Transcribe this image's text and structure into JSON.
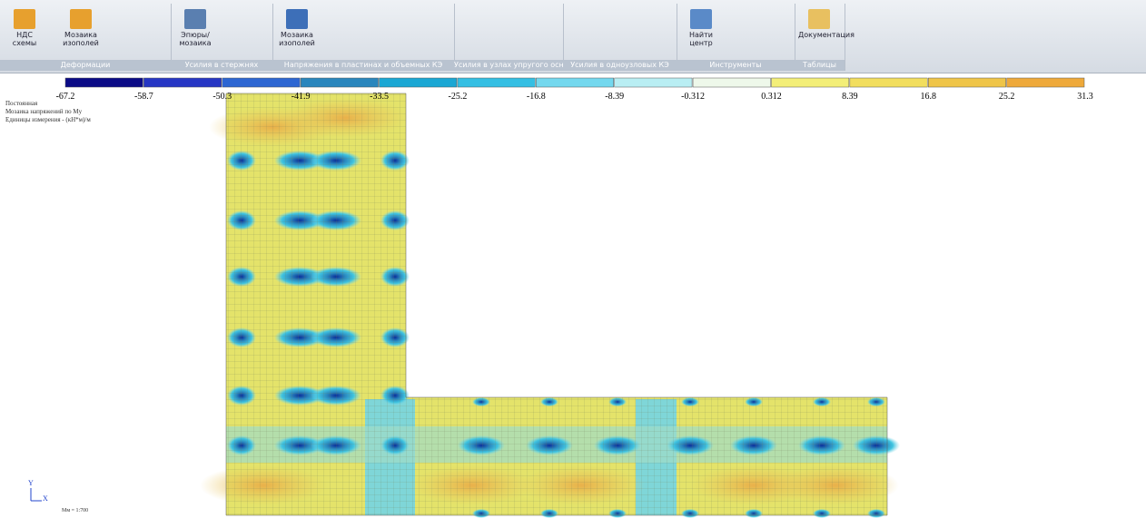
{
  "ribbon": {
    "groups": [
      {
        "caption": "Деформации",
        "buttons": [
          "НДС схемы",
          "Мозаика изополей"
        ]
      },
      {
        "caption": "Усилия в стержнях",
        "buttons": [
          "Эпюры/ мозаика"
        ]
      },
      {
        "caption": "Напряжения в пластинах и объемных КЭ",
        "buttons": [
          "Мозаика изополей"
        ]
      },
      {
        "caption": "Усилия в узлах упругого основания",
        "buttons": []
      },
      {
        "caption": "Усилия в одноузловых КЭ",
        "buttons": []
      },
      {
        "caption": "Инструменты",
        "buttons": [
          "Найти центр"
        ]
      },
      {
        "caption": "Таблицы",
        "buttons": [
          "Документация"
        ]
      }
    ]
  },
  "scale": {
    "labels": [
      "-67.2",
      "-58.7",
      "-50.3",
      "-41.9",
      "-33.5",
      "-25.2",
      "-16.8",
      "-8.39",
      "-0.312",
      "0.312",
      "8.39",
      "16.8",
      "25.2",
      "31.3"
    ],
    "colors": [
      "#0b0b86",
      "#2636c4",
      "#2d66d2",
      "#2a86bd",
      "#1aa7d4",
      "#34bfe3",
      "#74d8ee",
      "#b9eef3",
      "#eef8ea",
      "#f3ee78",
      "#f2de5e",
      "#efc548",
      "#eea93a"
    ]
  },
  "info": {
    "lines": [
      "Постоянная",
      "Мозаика напряжений по Mу",
      "Единицы измерения - (кН*м)/м"
    ]
  },
  "axes": {
    "y": "Y",
    "x": "X"
  },
  "footer": "Мм = 1:700"
}
